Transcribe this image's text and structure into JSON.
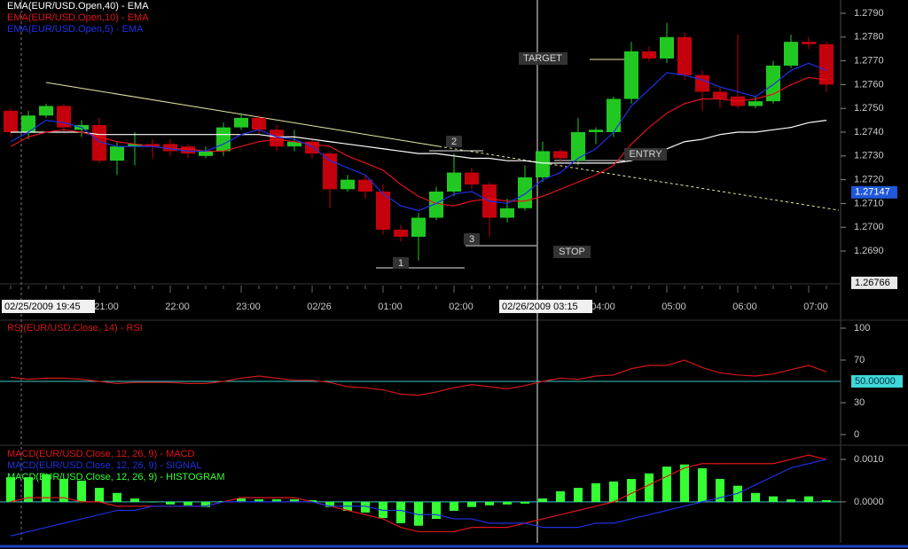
{
  "chart_data": [
    {
      "type": "candlestick",
      "categories": [
        null,
        null,
        null,
        null,
        null,
        "21:00",
        null,
        null,
        null,
        "22:00",
        null,
        null,
        null,
        "23:00",
        null,
        null,
        null,
        "02/26",
        null,
        null,
        null,
        "01:00",
        null,
        null,
        null,
        "02:00",
        null,
        null,
        null,
        null,
        null,
        null,
        null,
        "04:00",
        null,
        null,
        null,
        "05:00",
        null,
        null,
        null,
        "06:00",
        null,
        null,
        null,
        "07:00",
        null
      ],
      "open": [
        1.2749,
        1.274,
        1.2747,
        1.2751,
        1.2741,
        1.2743,
        1.2728,
        1.2734,
        1.2735,
        1.2735,
        1.2734,
        1.273,
        1.2732,
        1.2742,
        1.2746,
        1.2741,
        1.2734,
        1.2736,
        1.2731,
        1.2716,
        1.272,
        1.2715,
        1.2699,
        1.2696,
        1.2704,
        1.2715,
        1.2723,
        1.2718,
        1.2704,
        1.2708,
        1.2721,
        1.2732,
        1.2728,
        1.274,
        1.274,
        1.2754,
        1.2774,
        1.2771,
        1.278,
        1.2764,
        1.2757,
        1.2755,
        1.2751,
        1.2753,
        1.2768,
        1.2778,
        1.2777
      ],
      "high": [
        1.275,
        1.2749,
        1.2752,
        1.2752,
        1.2745,
        1.2746,
        1.2736,
        1.274,
        1.2737,
        1.2737,
        1.2735,
        1.2734,
        1.2744,
        1.2748,
        1.2747,
        1.2743,
        1.2741,
        1.2737,
        1.2732,
        1.2722,
        1.2722,
        1.2718,
        1.2701,
        1.2706,
        1.2717,
        1.2731,
        1.2725,
        1.2719,
        1.2712,
        1.2726,
        1.2736,
        1.2733,
        1.2746,
        1.2742,
        1.2755,
        1.2778,
        1.2776,
        1.2786,
        1.2782,
        1.2766,
        1.2759,
        1.2781,
        1.2755,
        1.277,
        1.2781,
        1.278,
        1.2778
      ],
      "low": [
        1.2738,
        1.2737,
        1.2746,
        1.274,
        1.2738,
        1.2727,
        1.2722,
        1.2726,
        1.2729,
        1.273,
        1.2729,
        1.2729,
        1.273,
        1.2741,
        1.2739,
        1.2732,
        1.2732,
        1.2729,
        1.2708,
        1.2715,
        1.2712,
        1.2697,
        1.2694,
        1.2686,
        1.2703,
        1.2713,
        1.2716,
        1.2696,
        1.2702,
        1.2707,
        1.2719,
        1.2727,
        1.2726,
        1.2735,
        1.2738,
        1.2752,
        1.277,
        1.2769,
        1.2762,
        1.2749,
        1.275,
        1.275,
        1.275,
        1.2752,
        1.2767,
        1.2775,
        1.2757
      ],
      "close": [
        1.274,
        1.2747,
        1.2751,
        1.2742,
        1.2743,
        1.2728,
        1.2734,
        1.2735,
        1.2734,
        1.2732,
        1.2731,
        1.2732,
        1.2742,
        1.2746,
        1.2741,
        1.2734,
        1.2736,
        1.2731,
        1.2716,
        1.272,
        1.2715,
        1.2699,
        1.2696,
        1.2704,
        1.2715,
        1.2723,
        1.2718,
        1.2704,
        1.2708,
        1.2721,
        1.2732,
        1.2729,
        1.274,
        1.2741,
        1.2754,
        1.2774,
        1.2771,
        1.278,
        1.2764,
        1.2757,
        1.2754,
        1.2751,
        1.2753,
        1.2768,
        1.2778,
        1.2777,
        1.276
      ],
      "up_color": "#22c822",
      "down_color": "#c4000c",
      "series": [
        {
          "name": "EMA(EUR/USD.Open,40) - EMA",
          "color": "#ffffff",
          "values": [
            1.274,
            1.274,
            1.274,
            1.274,
            1.274,
            1.2739,
            1.2739,
            1.2739,
            1.2739,
            1.2739,
            1.2739,
            1.2739,
            1.2739,
            1.2739,
            1.2739,
            1.2738,
            1.2738,
            1.2737,
            1.2736,
            1.2735,
            1.2734,
            1.2733,
            1.2732,
            1.2731,
            1.2731,
            1.273,
            1.2729,
            1.2729,
            1.2728,
            1.2728,
            1.2727,
            1.2727,
            1.2727,
            1.2727,
            1.2727,
            1.2728,
            1.2731,
            1.2733,
            1.2736,
            1.2737,
            1.2739,
            1.274,
            1.274,
            1.2741,
            1.2742,
            1.2744,
            1.2745
          ]
        },
        {
          "name": "EMA(EUR/USD.Open,10) - EMA",
          "color": "#e0141c",
          "values": [
            1.2734,
            1.2738,
            1.274,
            1.2741,
            1.274,
            1.2738,
            1.2736,
            1.2735,
            1.2734,
            1.2733,
            1.2733,
            1.2732,
            1.2732,
            1.2734,
            1.2736,
            1.2737,
            1.2736,
            1.2735,
            1.2734,
            1.273,
            1.2727,
            1.2724,
            1.2718,
            1.2713,
            1.271,
            1.2709,
            1.2711,
            1.2712,
            1.2711,
            1.2711,
            1.2713,
            1.2716,
            1.2719,
            1.2722,
            1.2726,
            1.2735,
            1.2742,
            1.2748,
            1.2752,
            1.2754,
            1.2754,
            1.2753,
            1.2754,
            1.2756,
            1.276,
            1.2763,
            1.2762
          ]
        },
        {
          "name": "EMA(EUR/USD.Open,5) - EMA",
          "color": "#1e32e6",
          "values": [
            1.2736,
            1.274,
            1.2745,
            1.2744,
            1.2742,
            1.2736,
            1.2734,
            1.2734,
            1.2734,
            1.2733,
            1.2732,
            1.2732,
            1.2735,
            1.2739,
            1.2741,
            1.2738,
            1.2737,
            1.2734,
            1.2728,
            1.2725,
            1.2722,
            1.2714,
            1.2709,
            1.2707,
            1.271,
            1.2714,
            1.2715,
            1.2711,
            1.271,
            1.2714,
            1.272,
            1.2723,
            1.2729,
            1.2733,
            1.274,
            1.2751,
            1.2758,
            1.2765,
            1.2764,
            1.2762,
            1.2759,
            1.2757,
            1.2755,
            1.276,
            1.2766,
            1.2769,
            1.2766
          ]
        }
      ],
      "ylim": [
        1.26762,
        1.27956
      ],
      "yticks": [
        {
          "value": 1.279,
          "label": "1.2790"
        },
        {
          "value": 1.278,
          "label": "1.2780"
        },
        {
          "value": 1.277,
          "label": "1.2770"
        },
        {
          "value": 1.276,
          "label": "1.2760"
        },
        {
          "value": 1.275,
          "label": "1.2750"
        },
        {
          "value": 1.274,
          "label": "1.2740"
        },
        {
          "value": 1.273,
          "label": "1.2730"
        },
        {
          "value": 1.272,
          "label": "1.2720"
        },
        {
          "value": 1.271,
          "label": "1.2710"
        },
        {
          "value": 1.27,
          "label": "1.2700"
        },
        {
          "value": 1.269,
          "label": "1.2690"
        }
      ],
      "price_markers": [
        1.27147,
        1.26766
      ],
      "cursor_labels": [
        "02/25/2009 19:45",
        "02/26/2009 03:15"
      ],
      "annotations": [
        "TARGET",
        "ENTRY",
        "STOP",
        "1",
        "2",
        "3"
      ]
    },
    {
      "type": "line",
      "series": [
        {
          "name": "RSI(EUR/USD.Close, 14) - RSI",
          "color": "#d01818",
          "values": [
            54,
            52,
            53,
            53,
            52,
            50,
            48,
            49,
            49,
            49,
            48,
            48,
            50,
            53,
            55,
            53,
            51,
            51,
            49,
            45,
            44,
            42,
            38,
            37,
            40,
            44,
            47,
            45,
            43,
            46,
            50,
            53,
            52,
            55,
            56,
            62,
            65,
            65,
            70,
            63,
            58,
            56,
            55,
            57,
            61,
            65,
            59
          ]
        }
      ],
      "ylim": [
        -8,
        106
      ],
      "yticks": [
        100,
        70,
        30,
        0
      ],
      "reference_line": {
        "value": 50,
        "label": "50.00000"
      }
    },
    {
      "type": "combo",
      "series": [
        {
          "name": "MACD(EUR/USD.Close, 12, 26, 9) - MACD",
          "type": "line",
          "color": "#e0141c",
          "values": [
            0,
            0.0001,
            0.0001,
            0.0001,
            0,
            0,
            -0.0001,
            -0.0001,
            -0.0001,
            -0.0001,
            -0.0001,
            -0.0001,
            0,
            0.0001,
            0.0001,
            0.0001,
            0.0001,
            0,
            -0.0001,
            -0.0002,
            -0.0003,
            -0.0004,
            -0.0006,
            -0.0007,
            -0.0007,
            -0.0007,
            -0.0006,
            -0.0006,
            -0.0006,
            -0.0005,
            -0.0004,
            -0.0003,
            -0.0002,
            -0.0001,
            0,
            0.0002,
            0.0004,
            0.0006,
            0.0008,
            0.0009,
            0.0009,
            0.0009,
            0.0009,
            0.0009,
            0.001,
            0.0011,
            0.001
          ]
        },
        {
          "name": "MACD(EUR/USD.Close, 12, 26, 9) - SIGNAL",
          "type": "line",
          "color": "#2030e0",
          "values": [
            -0.0008,
            -0.0007,
            -0.0006,
            -0.0005,
            -0.0004,
            -0.0003,
            -0.0002,
            -0.0002,
            -0.0001,
            -0.0001,
            -0.0001,
            -0.0001,
            0,
            0,
            0,
            0,
            0,
            0,
            -0.0001,
            -0.0001,
            -0.0001,
            -0.0002,
            -0.0002,
            -0.0003,
            -0.0003,
            -0.0004,
            -0.0004,
            -0.0005,
            -0.0005,
            -0.0005,
            -0.0006,
            -0.0006,
            -0.0006,
            -0.0005,
            -0.0005,
            -0.0004,
            -0.0003,
            -0.0002,
            -0.0001,
            0,
            0.0001,
            0.0002,
            0.0004,
            0.0006,
            0.0008,
            0.0009,
            0.001
          ]
        },
        {
          "name": "MACD(EUR/USD.Close, 12, 26, 9) - HISTOGRAM",
          "type": "bar",
          "color": "#33ff33",
          "values": [
            0.00058,
            0.00058,
            0.00065,
            0.00054,
            0.0005,
            0.00033,
            0.00021,
            8e-05,
            0,
            -6e-05,
            -8e-05,
            -0.00012,
            2e-05,
            8e-05,
            6e-05,
            6e-05,
            6e-05,
            4e-05,
            -0.00012,
            -0.00021,
            -0.00025,
            -0.00038,
            -0.0005,
            -0.00056,
            -0.0004,
            -0.00021,
            -0.00012,
            -8e-05,
            -6e-05,
            -4e-05,
            8e-05,
            0.00025,
            0.00033,
            0.00044,
            0.00048,
            0.00054,
            0.00067,
            0.00083,
            0.00088,
            0.00079,
            0.00054,
            0.00038,
            0.00021,
            0.00013,
            6e-05,
            0.00013,
            4e-05
          ]
        }
      ],
      "ylim": [
        -0.00092,
        0.00127
      ],
      "yticks": [
        {
          "value": 0.001,
          "label": "0.0010"
        },
        {
          "value": 0,
          "label": "0.0000"
        }
      ]
    }
  ]
}
